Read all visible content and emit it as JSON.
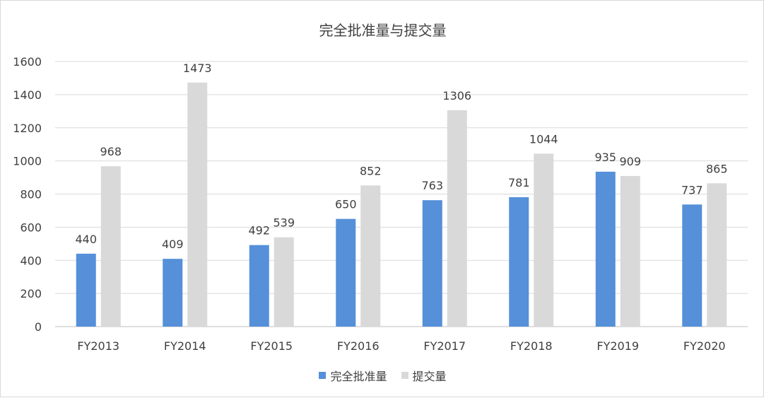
{
  "chart_data": {
    "type": "bar",
    "title": "完全批准量与提交量",
    "xlabel": "",
    "ylabel": "",
    "categories": [
      "FY2013",
      "FY2014",
      "FY2015",
      "FY2016",
      "FY2017",
      "FY2018",
      "FY2019",
      "FY2020"
    ],
    "series": [
      {
        "name": "完全批准量",
        "values": [
          440,
          409,
          492,
          650,
          763,
          781,
          935,
          737
        ],
        "color": "#5590d9"
      },
      {
        "name": "提交量",
        "values": [
          968,
          1473,
          539,
          852,
          1306,
          1044,
          909,
          865
        ],
        "color": "#d9d9d9"
      }
    ],
    "ylim": [
      0,
      1600
    ],
    "yticks": [
      0,
      200,
      400,
      600,
      800,
      1000,
      1200,
      1400,
      1600
    ],
    "grid": true,
    "legend": "bottom",
    "data_labels": true
  }
}
